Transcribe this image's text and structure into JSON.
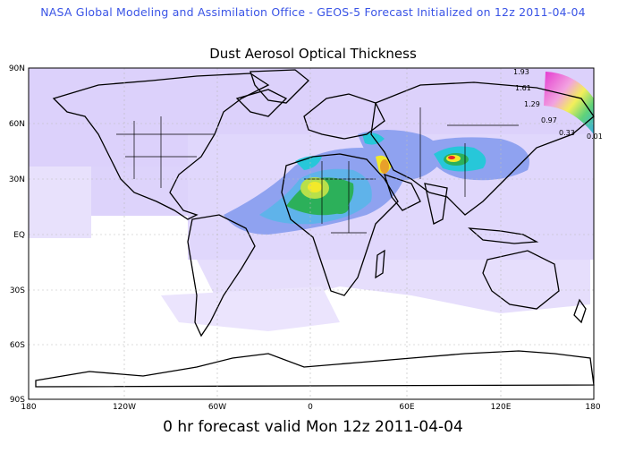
{
  "header": {
    "text": "NASA Global Modeling and Assimilation Office - GEOS-5 Forecast Initialized on 12z 2011-04-04"
  },
  "map": {
    "title": "Dust Aerosol Optical Thickness",
    "footer": "0 hr forecast valid Mon 12z 2011-04-04",
    "lat_labels": [
      "90N",
      "60N",
      "30N",
      "EQ",
      "30S",
      "60S",
      "90S"
    ],
    "lon_labels": [
      "180",
      "120W",
      "60W",
      "0",
      "60E",
      "120E",
      "180"
    ],
    "colorbar_labels": [
      "1.93",
      "1.61",
      "1.29",
      "0.97",
      "0.33",
      "0.01"
    ],
    "colors": {
      "background_shade": "#d9cdfa",
      "low": "#ece8fd",
      "mid": "#8fa2f0",
      "high_cyan": "#27c7d9",
      "high_green": "#2cb05a",
      "peak_yellow": "#f2e92a",
      "peak_red": "#e8242a",
      "header": "#3a54e6"
    }
  }
}
